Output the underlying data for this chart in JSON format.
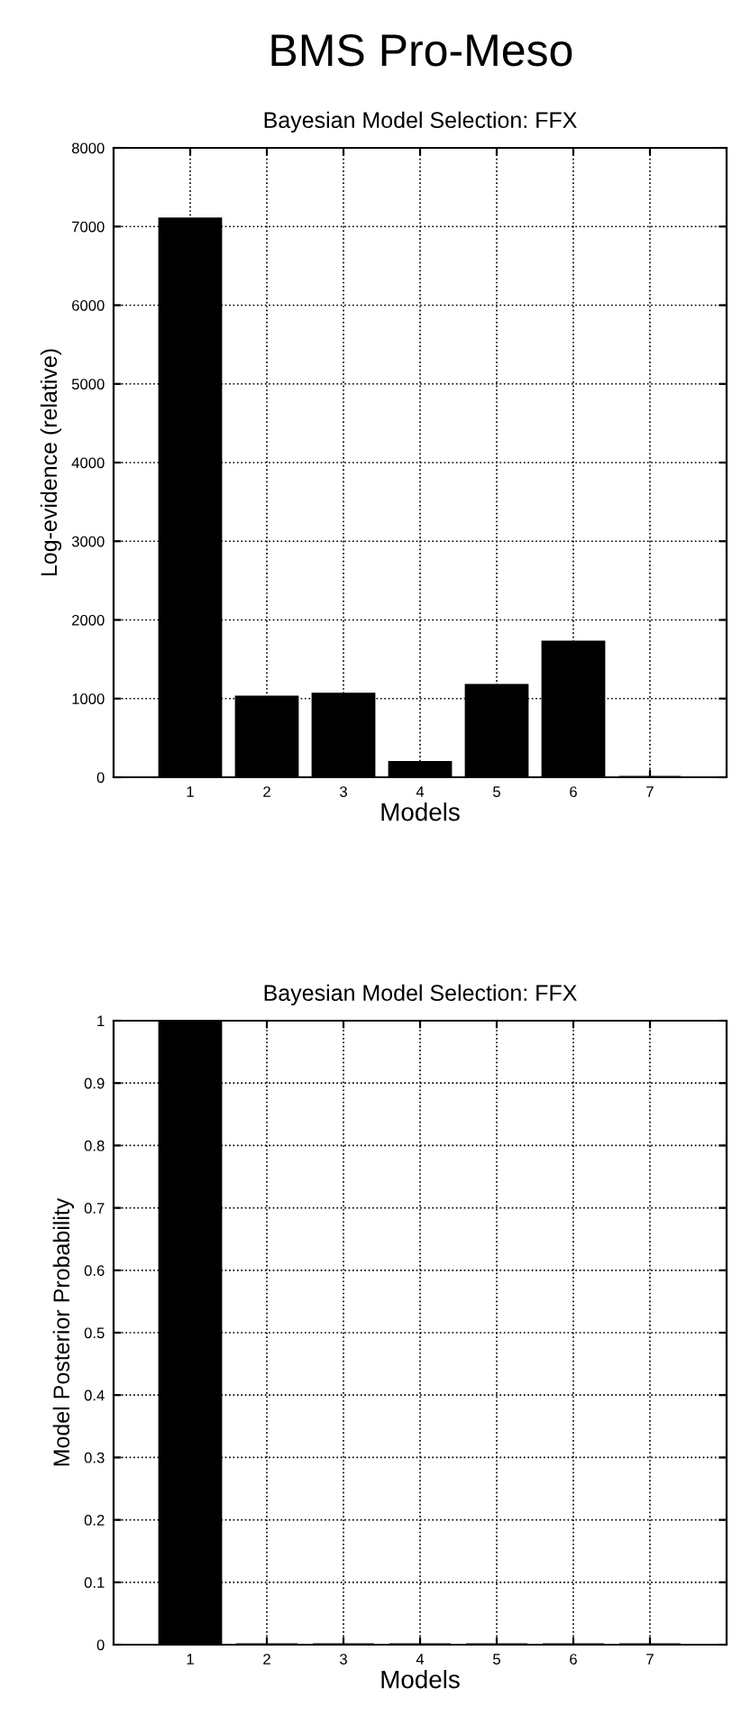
{
  "chart_data": [
    {
      "type": "bar",
      "title": "BMS Pro-Meso",
      "subtitle": "Bayesian Model Selection: FFX",
      "xlabel": "Models",
      "ylabel": "Log-evidence (relative)",
      "categories": [
        "1",
        "2",
        "3",
        "4",
        "5",
        "6",
        "7"
      ],
      "values": [
        7100,
        1020,
        1060,
        190,
        1170,
        1720,
        0
      ],
      "color": "#000000",
      "ylim": [
        0,
        8000
      ],
      "yticks": [
        0,
        1000,
        2000,
        3000,
        4000,
        5000,
        6000,
        7000,
        8000
      ],
      "grid": true,
      "line_style": "dotted"
    },
    {
      "type": "bar",
      "title": "Bayesian Model Selection: FFX",
      "xlabel": "Models",
      "ylabel": "Model Posterior Probability",
      "categories": [
        "1",
        "2",
        "3",
        "4",
        "5",
        "6",
        "7"
      ],
      "values": [
        1,
        0,
        0,
        0,
        0,
        0,
        0
      ],
      "color": "#000000",
      "ylim": [
        0,
        1
      ],
      "yticks": [
        0,
        0.1,
        0.2,
        0.3,
        0.4,
        0.5,
        0.6,
        0.7,
        0.8,
        0.9,
        1
      ],
      "grid": true,
      "line_style": "dotted"
    }
  ]
}
